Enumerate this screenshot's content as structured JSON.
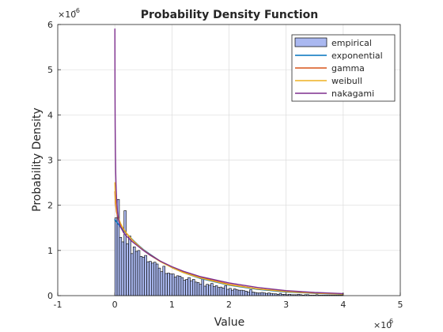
{
  "chart_data": {
    "type": "histogram",
    "title": "Probability Density Function",
    "xlabel": "Value",
    "ylabel": "Probability Density",
    "xlim": [
      -1000000,
      5000000
    ],
    "ylim": [
      0,
      6e-06
    ],
    "x_ticks": [
      -1000000,
      0,
      1000000,
      2000000,
      3000000,
      4000000,
      5000000
    ],
    "x_tick_labels": [
      "-1",
      "0",
      "1",
      "2",
      "3",
      "4",
      "5"
    ],
    "x_exponent_label": "×10",
    "x_exponent_power": "6",
    "y_ticks": [
      0,
      1e-06,
      2e-06,
      3e-06,
      4e-06,
      5e-06,
      6e-06
    ],
    "y_tick_labels": [
      "0",
      "1",
      "2",
      "3",
      "4",
      "5",
      "6"
    ],
    "y_exponent_label": "×10",
    "y_exponent_power": "-6",
    "grid": true,
    "legend_position": "top-right",
    "legend": [
      {
        "name": "empirical",
        "kind": "patch",
        "color": "#aab8f0",
        "edge": "#000000"
      },
      {
        "name": "exponential",
        "kind": "line",
        "color": "#0072bd"
      },
      {
        "name": "gamma",
        "kind": "line",
        "color": "#d95319"
      },
      {
        "name": "weibull",
        "kind": "line",
        "color": "#edb120"
      },
      {
        "name": "nakagami",
        "kind": "line",
        "color": "#7e2f8e"
      }
    ],
    "histogram": {
      "series": "empirical",
      "bin_width": 40000,
      "bin_start": 0,
      "values_e6": [
        1.72,
        2.13,
        1.29,
        1.19,
        1.88,
        1.15,
        1.32,
        0.93,
        1.08,
        0.98,
        1.0,
        0.87,
        0.85,
        0.89,
        0.75,
        0.76,
        0.72,
        0.74,
        0.7,
        0.61,
        0.53,
        0.65,
        0.49,
        0.5,
        0.48,
        0.48,
        0.41,
        0.44,
        0.43,
        0.4,
        0.34,
        0.36,
        0.4,
        0.33,
        0.36,
        0.3,
        0.29,
        0.25,
        0.39,
        0.21,
        0.25,
        0.23,
        0.27,
        0.2,
        0.22,
        0.18,
        0.19,
        0.17,
        0.22,
        0.14,
        0.16,
        0.12,
        0.15,
        0.13,
        0.12,
        0.12,
        0.11,
        0.1,
        0.08,
        0.13,
        0.08,
        0.07,
        0.06,
        0.06,
        0.07,
        0.06,
        0.05,
        0.06,
        0.05,
        0.04,
        0.04,
        0.03,
        0.05,
        0.03,
        0.03,
        0.02,
        0.03,
        0.02,
        0.02,
        0.02,
        0.03,
        0.02,
        0.01,
        0.02,
        0.02,
        0.01,
        0.01,
        0.01,
        0.02,
        0.01,
        0.01,
        0.01,
        0.01,
        0.01,
        0.01,
        0.01,
        0.01,
        0.01,
        0.01,
        0.01
      ]
    },
    "series": [
      {
        "name": "exponential",
        "color": "#0072bd",
        "x": [
          0,
          50000,
          100000,
          200000,
          300000,
          400000,
          500000,
          600000,
          800000,
          1000000,
          1200000,
          1500000,
          2000000,
          2500000,
          3000000,
          3500000,
          4000000
        ],
        "y_e6": [
          1.68,
          1.6,
          1.52,
          1.38,
          1.25,
          1.13,
          1.02,
          0.93,
          0.76,
          0.62,
          0.51,
          0.38,
          0.23,
          0.14,
          0.08,
          0.05,
          0.03
        ]
      },
      {
        "name": "gamma",
        "color": "#d95319",
        "x": [
          1000,
          10000,
          30000,
          60000,
          100000,
          150000,
          200000,
          300000,
          400000,
          500000,
          600000,
          800000,
          1000000,
          1200000,
          1500000,
          2000000,
          2500000,
          3000000,
          3500000,
          4000000
        ],
        "y_e6": [
          2.3,
          2.05,
          1.85,
          1.7,
          1.58,
          1.47,
          1.38,
          1.24,
          1.12,
          1.01,
          0.92,
          0.76,
          0.63,
          0.52,
          0.4,
          0.25,
          0.15,
          0.09,
          0.055,
          0.035
        ]
      },
      {
        "name": "weibull",
        "color": "#edb120",
        "x": [
          1000,
          10000,
          30000,
          60000,
          100000,
          150000,
          200000,
          300000,
          400000,
          500000,
          600000,
          800000,
          1000000,
          1200000,
          1500000,
          2000000,
          2500000,
          3000000,
          3500000,
          4000000
        ],
        "y_e6": [
          2.5,
          2.15,
          1.9,
          1.74,
          1.6,
          1.48,
          1.39,
          1.24,
          1.12,
          1.01,
          0.91,
          0.75,
          0.62,
          0.51,
          0.39,
          0.24,
          0.15,
          0.09,
          0.055,
          0.033
        ]
      },
      {
        "name": "nakagami",
        "color": "#7e2f8e",
        "x": [
          1000,
          3000,
          6000,
          10000,
          15000,
          20000,
          30000,
          45000,
          60000,
          80000,
          100000,
          150000,
          200000,
          300000,
          400000,
          500000,
          600000,
          800000,
          1000000,
          1200000,
          1500000,
          2000000,
          2500000,
          3000000,
          3500000,
          4000000
        ],
        "y_e6": [
          5.9,
          4.6,
          3.75,
          3.2,
          2.75,
          2.48,
          2.15,
          1.88,
          1.72,
          1.6,
          1.52,
          1.4,
          1.32,
          1.2,
          1.1,
          1.0,
          0.91,
          0.76,
          0.64,
          0.54,
          0.42,
          0.28,
          0.18,
          0.11,
          0.07,
          0.045
        ]
      }
    ]
  }
}
